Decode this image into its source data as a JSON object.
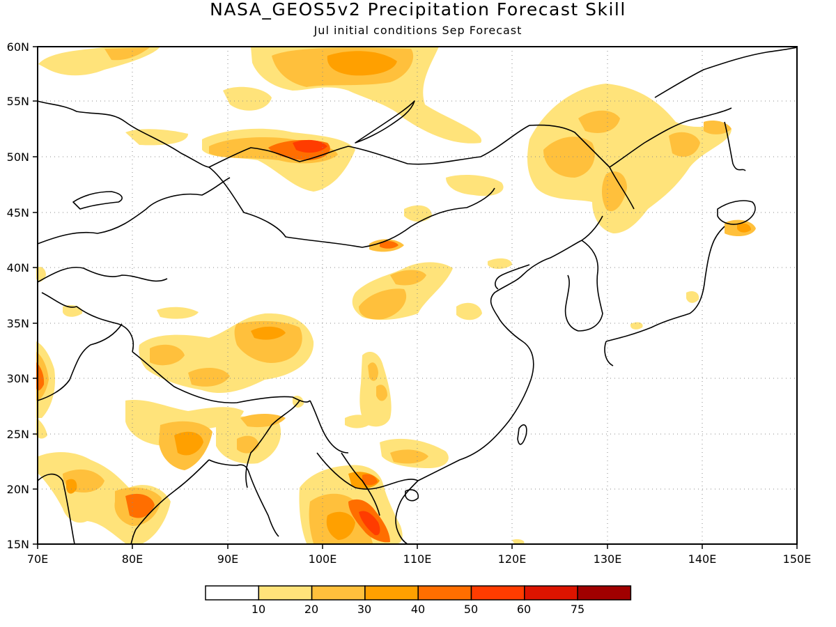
{
  "title": "NASA_GEOS5v2 Precipitation Forecast Skill",
  "subtitle": "Jul initial conditions  Sep Forecast",
  "map": {
    "lon_range": [
      70,
      150
    ],
    "lat_range": [
      15,
      60
    ],
    "lon_ticks": [
      "70E",
      "80E",
      "90E",
      "100E",
      "110E",
      "120E",
      "130E",
      "140E",
      "150E"
    ],
    "lat_ticks": [
      "60N",
      "55N",
      "50N",
      "45N",
      "40N",
      "35N",
      "30N",
      "25N",
      "20N",
      "15N"
    ],
    "grid": "dotted"
  },
  "colorbar": {
    "labels": [
      "10",
      "20",
      "30",
      "40",
      "50",
      "60",
      "75"
    ],
    "colors": [
      "#ffffff",
      "#ffe37a",
      "#ffc03c",
      "#ffa000",
      "#ff6e00",
      "#ff3c00",
      "#dc1400",
      "#a00000"
    ]
  },
  "skill_regions": [
    {
      "lon": 76,
      "lat": 59,
      "level": 1
    },
    {
      "lon": 86,
      "lat": 59,
      "level": 1
    },
    {
      "lon": 97,
      "lat": 58,
      "level": 2
    },
    {
      "lon": 103,
      "lat": 57,
      "level": 3
    },
    {
      "lon": 94,
      "lat": 52,
      "level": 1
    },
    {
      "lon": 100,
      "lat": 50.5,
      "level": 4
    },
    {
      "lon": 103,
      "lat": 50.5,
      "level": 5
    },
    {
      "lon": 103,
      "lat": 47,
      "level": 1
    },
    {
      "lon": 113,
      "lat": 47.5,
      "level": 1
    },
    {
      "lon": 124,
      "lat": 50,
      "level": 2
    },
    {
      "lon": 130,
      "lat": 53,
      "level": 2
    },
    {
      "lon": 136,
      "lat": 50,
      "level": 1
    },
    {
      "lon": 132,
      "lat": 45,
      "level": 1
    },
    {
      "lon": 144,
      "lat": 43,
      "level": 2
    },
    {
      "lon": 106,
      "lat": 42,
      "level": 4
    },
    {
      "lon": 107,
      "lat": 37,
      "level": 2
    },
    {
      "lon": 92,
      "lat": 33,
      "level": 2
    },
    {
      "lon": 97,
      "lat": 34,
      "level": 3
    },
    {
      "lon": 88,
      "lat": 31,
      "level": 2
    },
    {
      "lon": 71,
      "lat": 30,
      "level": 4
    },
    {
      "lon": 108,
      "lat": 29,
      "level": 1
    },
    {
      "lon": 86,
      "lat": 24.5,
      "level": 2
    },
    {
      "lon": 94,
      "lat": 23,
      "level": 2
    },
    {
      "lon": 110,
      "lat": 23,
      "level": 1
    },
    {
      "lon": 75,
      "lat": 21,
      "level": 1
    },
    {
      "lon": 80,
      "lat": 18,
      "level": 4
    },
    {
      "lon": 101,
      "lat": 18,
      "level": 2
    },
    {
      "lon": 105,
      "lat": 17,
      "level": 5
    }
  ]
}
